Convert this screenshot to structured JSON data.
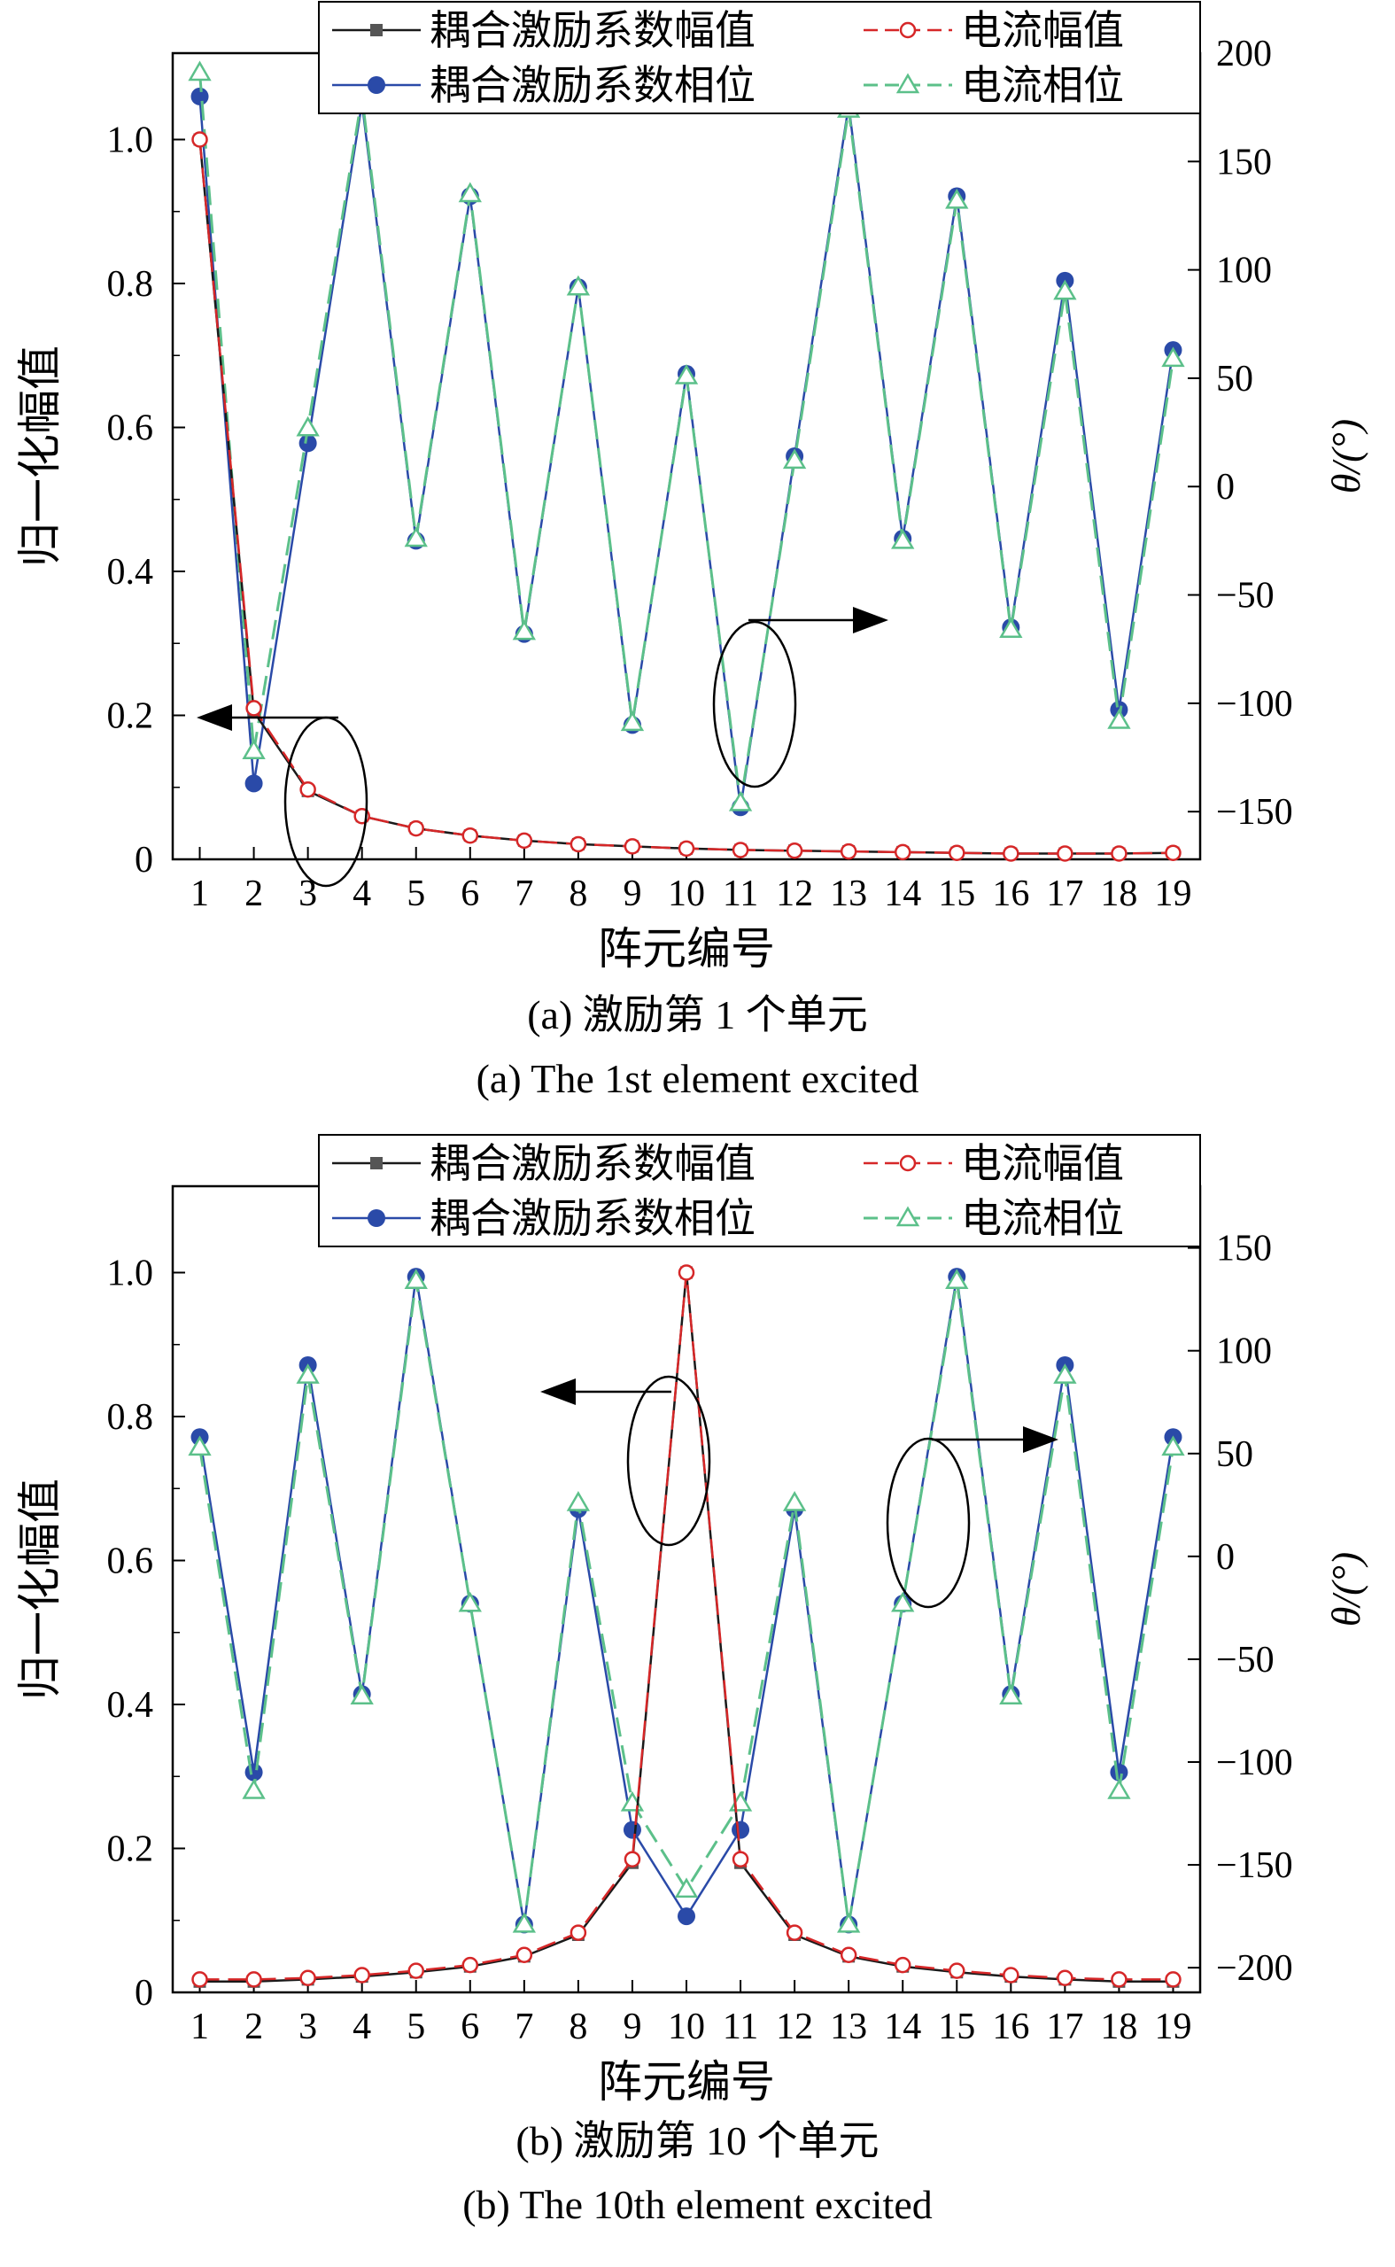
{
  "panels": [
    {
      "caption_cn": "(a) 激励第 1 个单元",
      "caption_en": "(a) The 1st element excited"
    },
    {
      "caption_cn": "(b) 激励第 10 个单元",
      "caption_en": "(b) The 10th element excited"
    }
  ],
  "colors": {
    "coupling_magnitude": "#1a1a1a",
    "current_magnitude": "#d62728",
    "coupling_phase": "#2a4aa8",
    "current_phase": "#5cc08a"
  },
  "chart_data": [
    {
      "type": "line",
      "x": [
        1,
        2,
        3,
        4,
        5,
        6,
        7,
        8,
        9,
        10,
        11,
        12,
        13,
        14,
        15,
        16,
        17,
        18,
        19
      ],
      "xlabel": "阵元编号",
      "ylabel": "归一化幅值",
      "y2label": "θ/(°)",
      "xlim": [
        0.5,
        19.5
      ],
      "ylim": [
        0,
        1.12
      ],
      "y2lim": [
        -172,
        200
      ],
      "yticks": [
        0,
        0.2,
        0.4,
        0.6,
        0.8,
        1.0
      ],
      "ytick_labels": [
        "0",
        "0.2",
        "0.4",
        "0.6",
        "0.8",
        "1.0"
      ],
      "y2ticks": [
        -150,
        -100,
        -50,
        0,
        50,
        100,
        150,
        200
      ],
      "legend_position": "top-right",
      "series": [
        {
          "name": "耦合激励系数幅值",
          "axis": "left",
          "marker": "square",
          "dashed": false,
          "values": [
            1.0,
            0.205,
            0.095,
            0.06,
            0.043,
            0.033,
            0.026,
            0.021,
            0.018,
            0.015,
            0.013,
            0.012,
            0.011,
            0.01,
            0.009,
            0.008,
            0.008,
            0.008,
            0.009
          ]
        },
        {
          "name": "电流幅值",
          "axis": "left",
          "marker": "circle-open",
          "dashed": true,
          "values": [
            1.0,
            0.21,
            0.097,
            0.06,
            0.043,
            0.033,
            0.026,
            0.021,
            0.018,
            0.015,
            0.013,
            0.012,
            0.011,
            0.01,
            0.009,
            0.008,
            0.008,
            0.008,
            0.009
          ]
        },
        {
          "name": "耦合激励系数相位",
          "axis": "right",
          "marker": "circle",
          "dashed": false,
          "values": [
            180,
            -137,
            20,
            177,
            -25,
            134,
            -68,
            92,
            -110,
            52,
            -148,
            14,
            176,
            -24,
            134,
            -65,
            95,
            -103,
            63
          ]
        },
        {
          "name": "电流相位",
          "axis": "right",
          "marker": "triangle-open",
          "dashed": true,
          "values": [
            191,
            -122,
            27,
            180,
            -24,
            135,
            -67,
            92,
            -109,
            51,
            -146,
            12,
            174,
            -25,
            132,
            -66,
            90,
            -108,
            59
          ]
        }
      ],
      "annotations": [
        {
          "type": "ellipse-arrow",
          "points_to": "left axis",
          "at_x": 3.75
        },
        {
          "type": "ellipse-arrow",
          "points_to": "right axis",
          "at_x": 11.25
        }
      ]
    },
    {
      "type": "line",
      "x": [
        1,
        2,
        3,
        4,
        5,
        6,
        7,
        8,
        9,
        10,
        11,
        12,
        13,
        14,
        15,
        16,
        17,
        18,
        19
      ],
      "xlabel": "阵元编号",
      "ylabel": "归一化幅值",
      "y2label": "θ/(°)",
      "xlim": [
        0.5,
        19.5
      ],
      "ylim": [
        0,
        1.12
      ],
      "y2lim": [
        -212,
        180
      ],
      "yticks": [
        0,
        0.2,
        0.4,
        0.6,
        0.8,
        1.0
      ],
      "ytick_labels": [
        "0",
        "0.2",
        "0.4",
        "0.6",
        "0.8",
        "1.0"
      ],
      "y2ticks": [
        -200,
        -150,
        -100,
        -50,
        0,
        50,
        100,
        150
      ],
      "legend_position": "top-right",
      "series": [
        {
          "name": "耦合激励系数幅值",
          "axis": "left",
          "marker": "square",
          "dashed": false,
          "values": [
            0.015,
            0.015,
            0.018,
            0.022,
            0.028,
            0.036,
            0.05,
            0.08,
            0.18,
            1.0,
            0.18,
            0.08,
            0.05,
            0.036,
            0.028,
            0.022,
            0.018,
            0.015,
            0.015
          ]
        },
        {
          "name": "电流幅值",
          "axis": "left",
          "marker": "circle-open",
          "dashed": true,
          "values": [
            0.018,
            0.018,
            0.02,
            0.024,
            0.03,
            0.038,
            0.052,
            0.083,
            0.185,
            1.0,
            0.185,
            0.083,
            0.052,
            0.038,
            0.03,
            0.024,
            0.02,
            0.018,
            0.018
          ]
        },
        {
          "name": "耦合激励系数相位",
          "axis": "right",
          "marker": "circle",
          "dashed": false,
          "values": [
            58,
            -105,
            93,
            -67,
            136,
            -23,
            -179,
            23,
            -133,
            -175,
            -133,
            23,
            -179,
            -23,
            136,
            -67,
            93,
            -105,
            58
          ]
        },
        {
          "name": "电流相位",
          "axis": "right",
          "marker": "triangle-open",
          "dashed": true,
          "values": [
            53,
            -114,
            88,
            -68,
            134,
            -23,
            -179,
            26,
            -120,
            -162,
            -120,
            26,
            -179,
            -23,
            134,
            -68,
            88,
            -114,
            53
          ]
        }
      ],
      "annotations": [
        {
          "type": "ellipse-arrow",
          "points_to": "left axis",
          "at_x": 10.0
        },
        {
          "type": "ellipse-arrow",
          "points_to": "right axis",
          "at_x": 14.7
        }
      ]
    }
  ]
}
